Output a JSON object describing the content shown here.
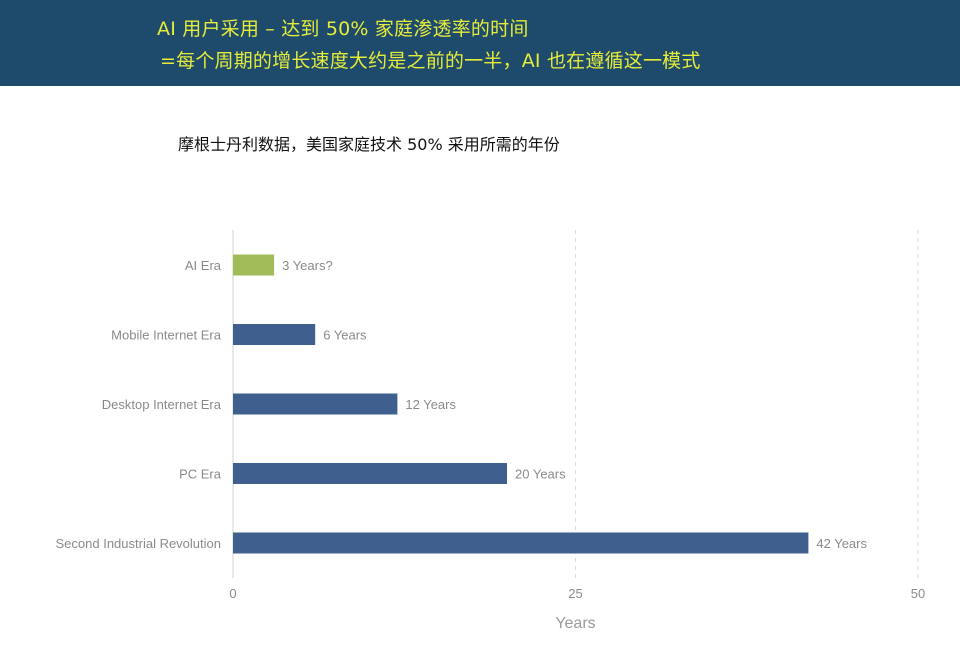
{
  "header": {
    "line1": "AI 用户采用 – 达到 50% 家庭渗透率的时间",
    "line2": "=每个周期的增长速度大约是之前的一半，AI 也在遵循这一模式"
  },
  "chart_data": {
    "type": "bar",
    "orientation": "horizontal",
    "title": "摩根士丹利数据，美国家庭技术 50% 采用所需的年份",
    "xlabel": "Years",
    "ylabel": "",
    "xlim": [
      0,
      50
    ],
    "xticks": [
      "0",
      "25",
      "50"
    ],
    "grid": "vertical dashed",
    "categories": [
      "AI Era",
      "Mobile Internet Era",
      "Desktop Internet Era",
      "PC Era",
      "Second Industrial Revolution"
    ],
    "values": [
      3,
      6,
      12,
      20,
      42
    ],
    "data_labels": [
      "3 Years?",
      "6 Years",
      "12 Years",
      "20 Years",
      "42 Years"
    ],
    "colors": [
      "#a0bb58",
      "#3f5f8f",
      "#3f5f8f",
      "#3f5f8f",
      "#3f5f8f"
    ]
  },
  "colors": {
    "banner_bg": "#1e4a6c",
    "banner_text": "#e6ec3a",
    "highlight_bar": "#a0bb58",
    "bar": "#3f5f8f"
  }
}
